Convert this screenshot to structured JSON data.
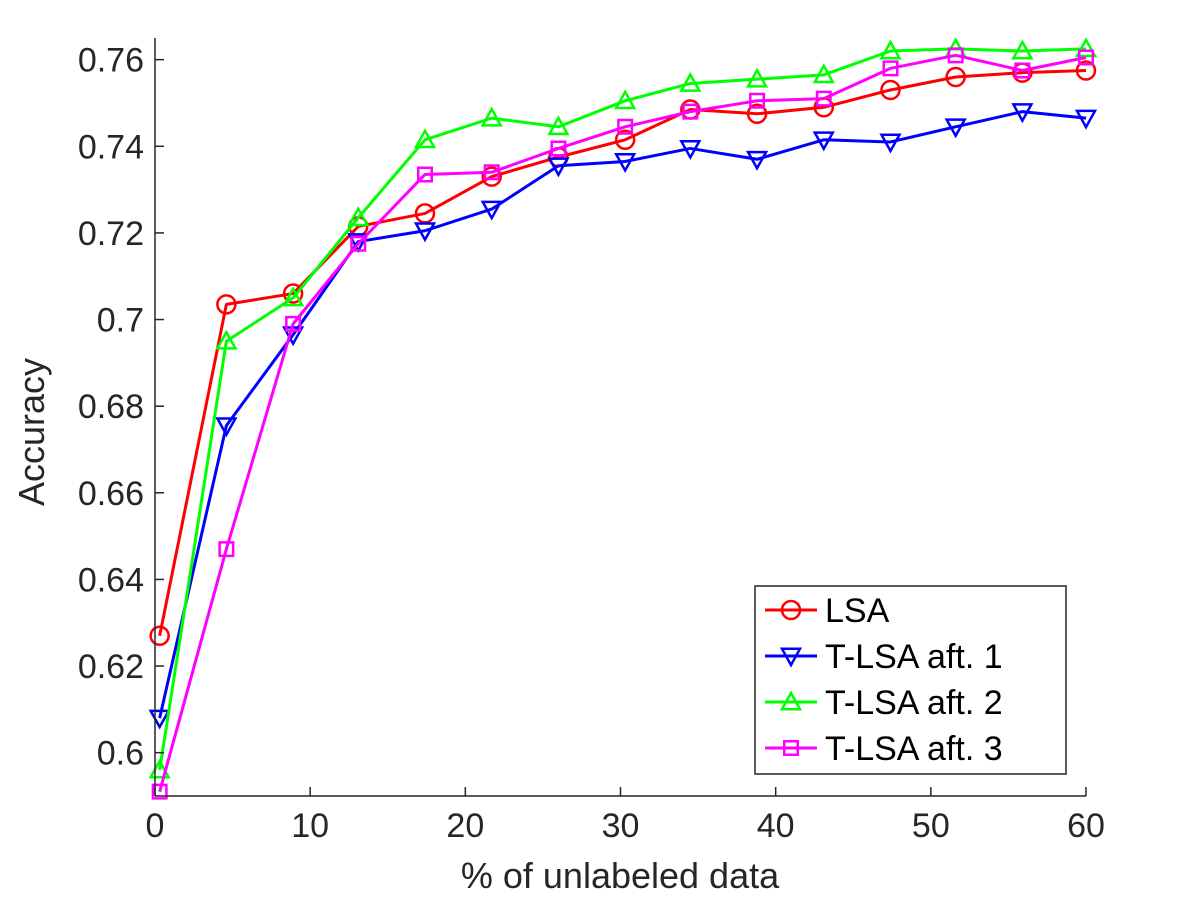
{
  "chart_data": {
    "type": "line",
    "xlabel": "% of unlabeled data",
    "ylabel": "Accuracy",
    "xlim": [
      0,
      60
    ],
    "ylim": [
      0.59,
      0.765
    ],
    "xticks": [
      0,
      10,
      20,
      30,
      40,
      50,
      60
    ],
    "yticks": [
      0.6,
      0.62,
      0.64,
      0.66,
      0.68,
      0.7,
      0.72,
      0.74,
      0.76
    ],
    "xtick_labels": [
      "0",
      "10",
      "20",
      "30",
      "40",
      "50",
      "60"
    ],
    "ytick_labels": [
      "0.6",
      "0.62",
      "0.64",
      "0.66",
      "0.68",
      "0.7",
      "0.72",
      "0.74",
      "0.76"
    ],
    "grid": false,
    "legend_position": "bottom-right",
    "x": [
      0.3,
      4.6,
      8.9,
      13.1,
      17.4,
      21.7,
      26.0,
      30.3,
      34.5,
      38.8,
      43.1,
      47.4,
      51.6,
      55.9,
      60.0
    ],
    "series": [
      {
        "name": "LSA",
        "color": "#ff0000",
        "marker": "circle",
        "values": [
          0.627,
          0.7035,
          0.706,
          0.7215,
          0.7245,
          0.733,
          0.7375,
          0.7415,
          0.7485,
          0.7475,
          0.749,
          0.753,
          0.756,
          0.757,
          0.7575
        ]
      },
      {
        "name": "T-LSA aft. 1",
        "color": "#0000ff",
        "marker": "triangle-down",
        "values": [
          0.608,
          0.6755,
          0.6965,
          0.718,
          0.7205,
          0.7255,
          0.7355,
          0.7365,
          0.7395,
          0.737,
          0.7415,
          0.741,
          0.7445,
          0.748,
          0.7465
        ]
      },
      {
        "name": "T-LSA aft. 2",
        "color": "#00ff00",
        "marker": "triangle-up",
        "values": [
          0.596,
          0.695,
          0.705,
          0.7235,
          0.7415,
          0.7465,
          0.7445,
          0.7505,
          0.7545,
          0.7555,
          0.7565,
          0.762,
          0.7625,
          0.762,
          0.7625
        ]
      },
      {
        "name": "T-LSA aft. 3",
        "color": "#ff00ff",
        "marker": "square",
        "values": [
          0.591,
          0.647,
          0.699,
          0.7175,
          0.7335,
          0.734,
          0.7395,
          0.7445,
          0.748,
          0.7505,
          0.751,
          0.758,
          0.761,
          0.7575,
          0.7605
        ]
      }
    ]
  }
}
